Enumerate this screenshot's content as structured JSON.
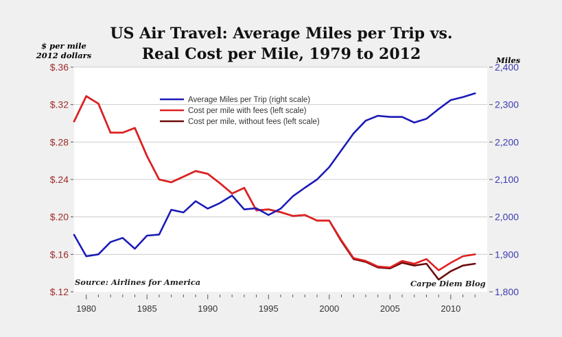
{
  "chart_data": {
    "type": "line",
    "title": "US Air Travel: Average Miles per Trip vs. Real Cost per Mile, 1979 to 2012",
    "title_lines": [
      "US Air Travel: Average Miles per Trip vs.",
      "Real Cost per Mile, 1979 to 2012"
    ],
    "ylabel_left": [
      "$ per mile",
      "2012 dollars"
    ],
    "ylabel_right": "Miles",
    "xlabel": "",
    "x": [
      1979,
      1980,
      1981,
      1982,
      1983,
      1984,
      1985,
      1986,
      1987,
      1988,
      1989,
      1990,
      1991,
      1992,
      1993,
      1994,
      1995,
      1996,
      1997,
      1998,
      1999,
      2000,
      2001,
      2002,
      2003,
      2004,
      2005,
      2006,
      2007,
      2008,
      2009,
      2010,
      2011,
      2012
    ],
    "xlim": [
      1979,
      2013
    ],
    "x_ticks": [
      1980,
      1985,
      1990,
      1995,
      2000,
      2005,
      2010
    ],
    "x_tick_labels": [
      "1980",
      "1985",
      "1990",
      "1995",
      "2000",
      "2005",
      "2010"
    ],
    "ylim_left": [
      0.12,
      0.36
    ],
    "y_ticks_left": [
      0.12,
      0.16,
      0.2,
      0.24,
      0.28,
      0.32,
      0.36
    ],
    "y_tick_labels_left": [
      "$.12",
      "$.16",
      "$.20",
      "$.24",
      "$.28",
      "$.32",
      "$.36"
    ],
    "ylim_right": [
      1800,
      2400
    ],
    "y_ticks_right": [
      1800,
      1900,
      2000,
      2100,
      2200,
      2300,
      2400
    ],
    "y_tick_labels_right": [
      "1,800",
      "1,900",
      "2,000",
      "2,100",
      "2,200",
      "2,300",
      "2,400"
    ],
    "grid": "horizontal",
    "legend_position": "top-center",
    "series": [
      {
        "name": "Average Miles per Trip (right scale)",
        "axis": "right",
        "color": "#1a1ab8",
        "values": [
          1952,
          1895,
          1900,
          1933,
          1944,
          1915,
          1950,
          1953,
          2019,
          2012,
          2042,
          2022,
          2037,
          2057,
          2020,
          2023,
          2005,
          2022,
          2055,
          2078,
          2100,
          2133,
          2178,
          2223,
          2257,
          2270,
          2267,
          2267,
          2252,
          2262,
          2288,
          2312,
          2320,
          2330
        ]
      },
      {
        "name": "Cost per mile with fees (left scale)",
        "axis": "left",
        "color": "#e02020",
        "values": [
          0.302,
          0.329,
          0.321,
          0.29,
          0.29,
          0.295,
          0.265,
          0.24,
          0.237,
          0.243,
          0.249,
          0.246,
          0.236,
          0.225,
          0.231,
          0.207,
          0.208,
          0.205,
          0.201,
          0.202,
          0.196,
          0.196,
          0.175,
          0.156,
          0.153,
          0.147,
          0.146,
          0.153,
          0.15,
          0.155,
          0.143,
          0.151,
          0.158,
          0.16
        ]
      },
      {
        "name": "Cost per mile, without fees (left scale)",
        "axis": "left",
        "color": "#6b0a0a",
        "values": [
          0.302,
          0.329,
          0.321,
          0.29,
          0.29,
          0.295,
          0.265,
          0.24,
          0.237,
          0.243,
          0.249,
          0.246,
          0.236,
          0.225,
          0.231,
          0.207,
          0.208,
          0.205,
          0.201,
          0.202,
          0.196,
          0.196,
          0.174,
          0.155,
          0.152,
          0.146,
          0.145,
          0.151,
          0.148,
          0.15,
          0.133,
          0.142,
          0.148,
          0.15
        ]
      }
    ],
    "annotations": [
      "Source: Airlines for America",
      "Carpe Diem Blog"
    ]
  },
  "colors": {
    "left_axis": "#9e2a2a",
    "right_axis": "#3a3ab0",
    "grid": "#cccccc",
    "plot_bg": "#ffffff",
    "page_bg": "#f0f0f0"
  }
}
